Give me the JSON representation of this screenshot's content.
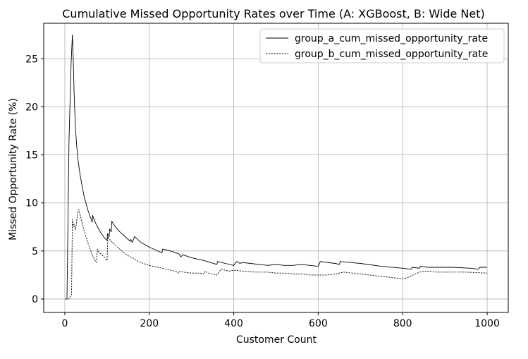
{
  "chart_data": {
    "type": "line",
    "title": "Cumulative Missed Opportunity Rates over Time (A: XGBoost, B: Wide Net)",
    "xlabel": "Customer Count",
    "ylabel": "Missed Opportunity Rate (%)",
    "xlim": [
      -50,
      1050
    ],
    "ylim": [
      -1.4,
      28.7
    ],
    "xticks": [
      0,
      200,
      400,
      600,
      800,
      1000
    ],
    "yticks": [
      0,
      5,
      10,
      15,
      20,
      25
    ],
    "grid": true,
    "legend_position": "top-right",
    "colors": {
      "line": "#000000",
      "grid": "#b0b0b0",
      "legend_border": "#cccccc"
    },
    "series": [
      {
        "name": "group_a_cum_missed_opportunity_rate",
        "style": "solid",
        "x": [
          1,
          5,
          10,
          15,
          18,
          20,
          22,
          25,
          28,
          32,
          36,
          40,
          45,
          50,
          55,
          60,
          65,
          66,
          70,
          75,
          80,
          85,
          90,
          95,
          100,
          101,
          105,
          106,
          110,
          111,
          115,
          120,
          130,
          140,
          150,
          155,
          156,
          160,
          165,
          170,
          175,
          180,
          200,
          230,
          232,
          250,
          270,
          275,
          280,
          300,
          330,
          360,
          362,
          380,
          400,
          405,
          407,
          415,
          420,
          440,
          460,
          480,
          500,
          520,
          540,
          560,
          580,
          600,
          605,
          640,
          650,
          652,
          700,
          750,
          800,
          820,
          822,
          840,
          842,
          860,
          880,
          920,
          960,
          980,
          982,
          1000
        ],
        "y": [
          0.0,
          0.0,
          16.5,
          24.6,
          27.5,
          25.0,
          21.5,
          18.0,
          16.0,
          14.2,
          13.0,
          12.0,
          10.8,
          10.0,
          9.2,
          8.6,
          8.0,
          8.7,
          8.2,
          7.7,
          7.3,
          6.9,
          6.6,
          6.3,
          6.1,
          6.8,
          6.5,
          7.3,
          7.0,
          8.1,
          7.8,
          7.5,
          7.0,
          6.6,
          6.2,
          6.0,
          6.2,
          5.9,
          6.5,
          6.3,
          6.1,
          5.9,
          5.4,
          4.8,
          5.2,
          5.0,
          4.7,
          4.4,
          4.6,
          4.3,
          4.0,
          3.6,
          3.9,
          3.7,
          3.5,
          3.8,
          3.9,
          3.7,
          3.8,
          3.7,
          3.6,
          3.5,
          3.6,
          3.5,
          3.5,
          3.6,
          3.5,
          3.4,
          3.9,
          3.7,
          3.6,
          3.9,
          3.7,
          3.4,
          3.2,
          3.1,
          3.3,
          3.2,
          3.4,
          3.3,
          3.3,
          3.3,
          3.2,
          3.1,
          3.3,
          3.3
        ]
      },
      {
        "name": "group_b_cum_missed_opportunity_rate",
        "style": "dashed",
        "x": [
          1,
          10,
          15,
          16,
          18,
          20,
          22,
          25,
          28,
          30,
          33,
          36,
          40,
          45,
          50,
          55,
          60,
          65,
          70,
          75,
          77,
          80,
          90,
          100,
          102,
          105,
          110,
          120,
          130,
          140,
          150,
          160,
          170,
          180,
          200,
          220,
          240,
          260,
          270,
          272,
          280,
          300,
          320,
          330,
          332,
          340,
          350,
          360,
          362,
          370,
          380,
          390,
          400,
          420,
          450,
          480,
          500,
          520,
          540,
          560,
          580,
          600,
          620,
          640,
          660,
          680,
          700,
          720,
          740,
          760,
          780,
          800,
          810,
          820,
          830,
          840,
          860,
          880,
          900,
          950,
          1000
        ],
        "y": [
          0.0,
          0.0,
          0.4,
          0.5,
          8.3,
          7.5,
          7.8,
          7.2,
          8.0,
          8.9,
          9.3,
          8.8,
          8.1,
          7.2,
          6.5,
          5.8,
          5.2,
          4.6,
          4.1,
          3.8,
          5.2,
          4.9,
          4.5,
          4.0,
          6.5,
          6.3,
          6.0,
          5.6,
          5.2,
          4.8,
          4.5,
          4.3,
          4.0,
          3.8,
          3.5,
          3.3,
          3.1,
          2.9,
          2.7,
          2.9,
          2.8,
          2.7,
          2.7,
          2.6,
          2.9,
          2.7,
          2.6,
          2.5,
          2.6,
          3.1,
          3.0,
          2.9,
          3.0,
          2.9,
          2.8,
          2.8,
          2.7,
          2.7,
          2.6,
          2.6,
          2.5,
          2.5,
          2.5,
          2.6,
          2.8,
          2.7,
          2.6,
          2.5,
          2.4,
          2.3,
          2.2,
          2.1,
          2.2,
          2.4,
          2.6,
          2.8,
          2.9,
          2.8,
          2.8,
          2.8,
          2.7
        ]
      }
    ]
  }
}
